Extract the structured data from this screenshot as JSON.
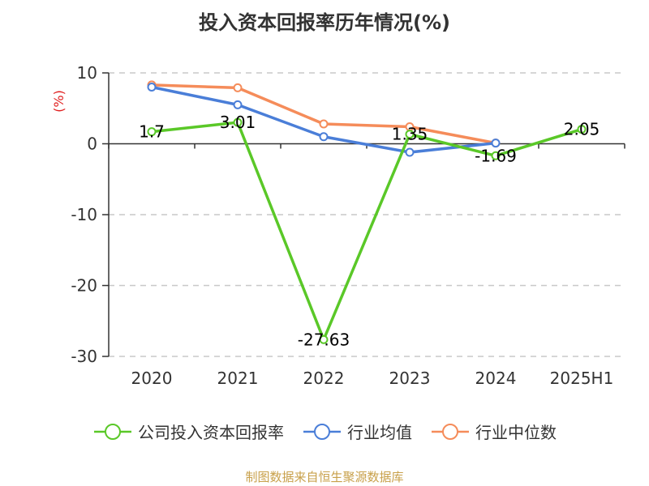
{
  "title": "投入资本回报率历年情况(%)",
  "source": "制图数据来自恒生聚源数据库",
  "chart_data": {
    "type": "line",
    "title": "投入资本回报率历年情况(%)",
    "ylabel": "(%)",
    "xlabel": "",
    "categories": [
      "2020",
      "2021",
      "2022",
      "2023",
      "2024",
      "2025H1"
    ],
    "ylim": [
      -30,
      10
    ],
    "yticks": [
      10,
      0,
      -10,
      -20,
      -30
    ],
    "grid": true,
    "legend_position": "bottom",
    "series": [
      {
        "name": "公司投入资本回报率",
        "color": "#5ac828",
        "values": [
          1.7,
          3.01,
          -27.63,
          1.35,
          -1.69,
          2.05
        ],
        "labels": [
          "1.7",
          "3.01",
          "-27.63",
          "1.35",
          "-1.69",
          "2.05"
        ]
      },
      {
        "name": "行业均值",
        "color": "#4a7ed8",
        "values": [
          8.0,
          5.5,
          1.0,
          -1.2,
          0.1,
          null
        ]
      },
      {
        "name": "行业中位数",
        "color": "#f58c5a",
        "values": [
          8.3,
          7.9,
          2.8,
          2.4,
          0.1,
          null
        ]
      }
    ]
  }
}
